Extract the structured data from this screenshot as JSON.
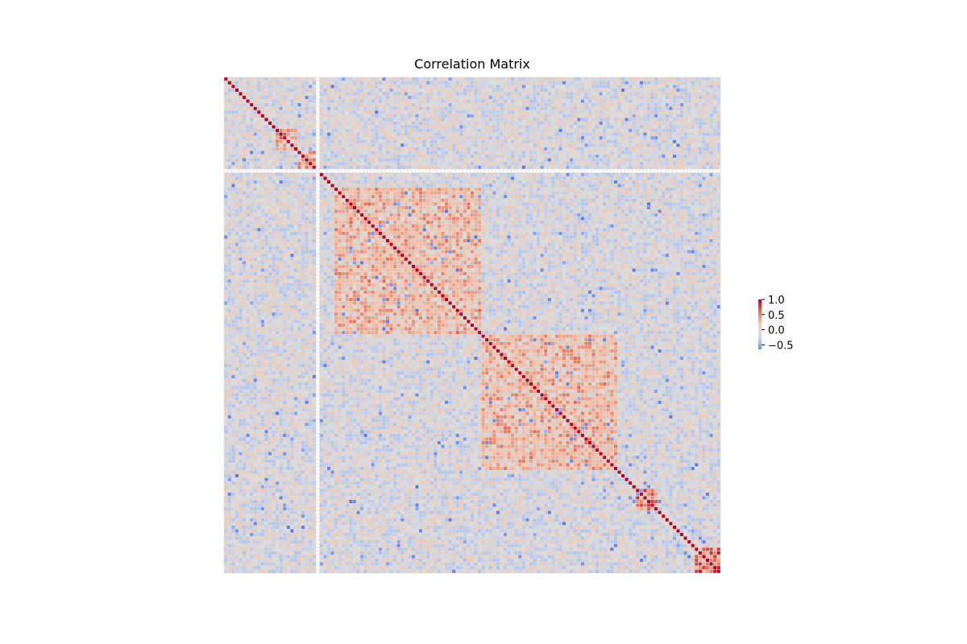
{
  "chart_data": {
    "type": "heatmap",
    "title": "Correlation Matrix",
    "xlabel": "",
    "ylabel": "",
    "n_variables": 135,
    "axis_tick_labels_shown": false,
    "colormap": "coolwarm",
    "colorbar": {
      "vmin": -0.65,
      "vmax": 1.0,
      "ticks": [
        1.0,
        0.5,
        0.0,
        -0.5
      ],
      "tick_labels": [
        "1.0",
        "0.5",
        "0.0",
        "−0.5"
      ],
      "placement": "right"
    },
    "cell_border_color": "#d9d9d9",
    "diagonal_value": 1.0,
    "constant_variable_indices": [
      25
    ],
    "blocks": [
      {
        "start": 14,
        "end": 20,
        "value": 0.55,
        "note": "small block near top-left"
      },
      {
        "start": 20,
        "end": 25,
        "value": 0.7
      },
      {
        "start": 30,
        "end": 70,
        "value": 0.45
      },
      {
        "start": 70,
        "end": 107,
        "value": 0.45
      },
      {
        "start": 112,
        "end": 118,
        "value": 0.7
      },
      {
        "start": 128,
        "end": 135,
        "value": 0.8
      }
    ],
    "value_range": [
      -0.6,
      1.0
    ]
  },
  "colors": {
    "negative": "#3b4cc0",
    "neutral": "#dddddd",
    "positive": "#b40426",
    "background": "#ffffff"
  }
}
